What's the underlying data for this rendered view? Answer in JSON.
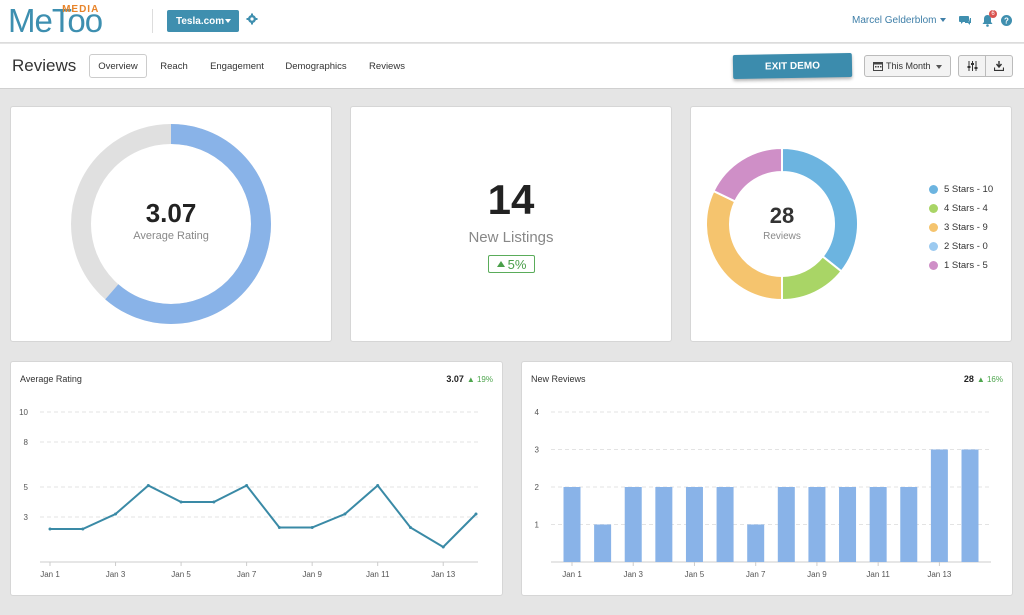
{
  "header": {
    "logo_text": "MeToo",
    "logo_sub": "MEDIA",
    "site_selector": "Tesla.com",
    "user_name": "Marcel Gelderblom",
    "notification_count": "6"
  },
  "subheader": {
    "page_title": "Reviews",
    "tabs": [
      {
        "label": "Overview",
        "active": true
      },
      {
        "label": "Reach",
        "active": false
      },
      {
        "label": "Engagement",
        "active": false
      },
      {
        "label": "Demographics",
        "active": false
      },
      {
        "label": "Reviews",
        "active": false
      }
    ],
    "exit_demo_label": "EXIT DEMO",
    "date_range_label": "This Month"
  },
  "rating_card": {
    "value": "3.07",
    "label": "Average Rating",
    "fill_fraction": 0.614,
    "colors": {
      "fill": "#89b3e8",
      "track": "#e0e0e0"
    }
  },
  "listings_card": {
    "value": "14",
    "label": "New Listings",
    "change": "5%"
  },
  "reviews_card": {
    "total": "28",
    "label": "Reviews",
    "breakdown": [
      {
        "label": "5 Stars - 10",
        "count": 10,
        "color": "#6cb4e0"
      },
      {
        "label": "4 Stars - 4",
        "count": 4,
        "color": "#a9d566"
      },
      {
        "label": "3 Stars - 9",
        "count": 9,
        "color": "#f5c46e"
      },
      {
        "label": "2 Stars - 0",
        "count": 0,
        "color": "#9ccaf0"
      },
      {
        "label": "1 Stars - 5",
        "count": 5,
        "color": "#cf8fc7"
      }
    ]
  },
  "chart_data": [
    {
      "type": "line",
      "title": "Average Rating",
      "stat": "3.07",
      "change": "19%",
      "x": [
        "Jan 1",
        "Jan 2",
        "Jan 3",
        "Jan 4",
        "Jan 5",
        "Jan 6",
        "Jan 7",
        "Jan 8",
        "Jan 9",
        "Jan 10",
        "Jan 11",
        "Jan 12",
        "Jan 13",
        "Jan 14"
      ],
      "xtick_labels": [
        "Jan 1",
        "Jan 3",
        "Jan 5",
        "Jan 7",
        "Jan 9",
        "Jan 11",
        "Jan 13"
      ],
      "values": [
        2.2,
        2.2,
        3.2,
        5.1,
        4,
        4,
        5.1,
        2.3,
        2.3,
        3.2,
        5.1,
        2.3,
        1,
        3.2
      ],
      "yticks": [
        3,
        5,
        8,
        10
      ],
      "ylim": [
        0,
        10
      ],
      "grid": true,
      "color": "#3a8aa6"
    },
    {
      "type": "bar",
      "title": "New Reviews",
      "stat": "28",
      "change": "16%",
      "categories": [
        "Jan 1",
        "Jan 2",
        "Jan 3",
        "Jan 4",
        "Jan 5",
        "Jan 6",
        "Jan 7",
        "Jan 8",
        "Jan 9",
        "Jan 10",
        "Jan 11",
        "Jan 12",
        "Jan 13",
        "Jan 14"
      ],
      "xtick_labels": [
        "Jan 1",
        "Jan 3",
        "Jan 5",
        "Jan 7",
        "Jan 9",
        "Jan 11",
        "Jan 13"
      ],
      "values": [
        2,
        1,
        2,
        2,
        2,
        2,
        1,
        2,
        2,
        2,
        2,
        2,
        3,
        3
      ],
      "yticks": [
        1,
        2,
        3,
        4
      ],
      "ylim": [
        0,
        4
      ],
      "grid": true,
      "color": "#89b3e8"
    }
  ]
}
